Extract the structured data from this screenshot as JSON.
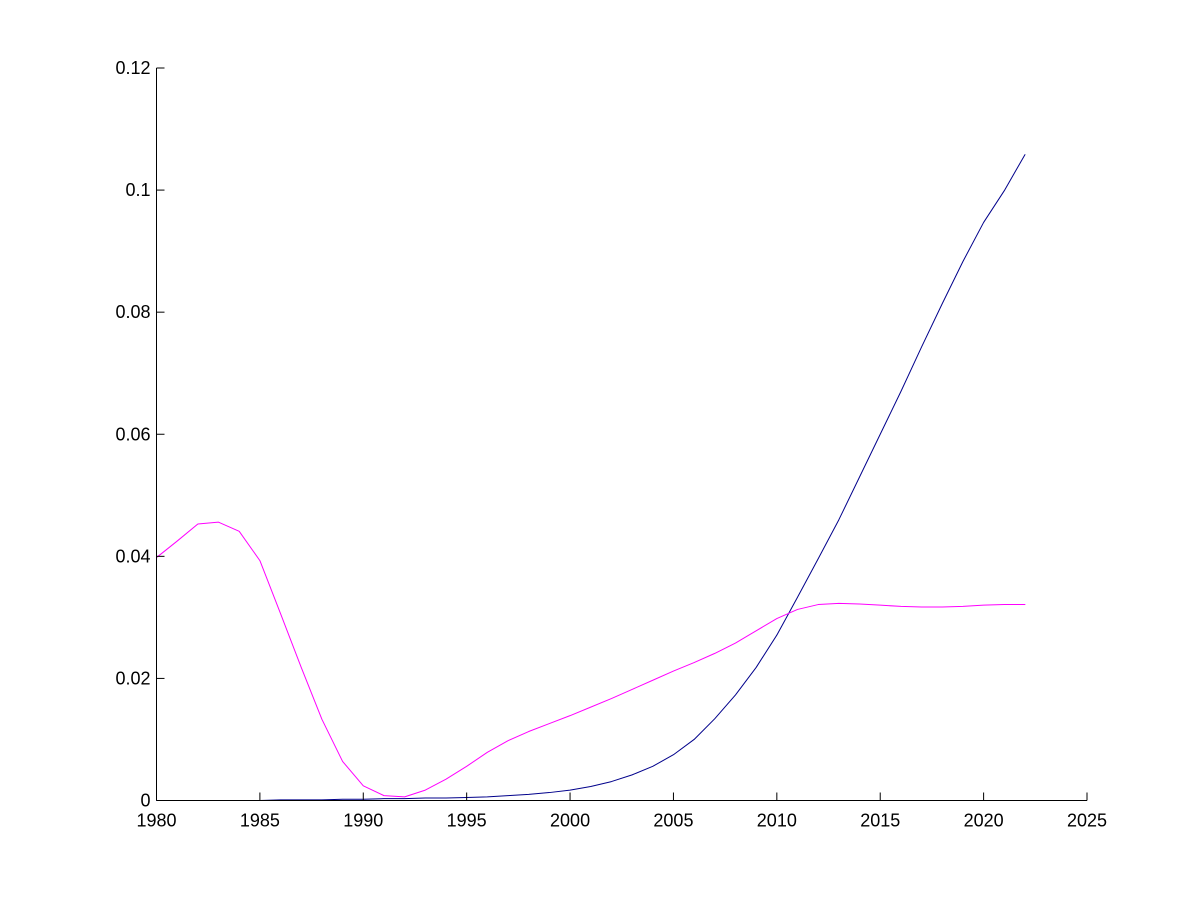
{
  "chart_data": {
    "type": "line",
    "title": "",
    "xlabel": "",
    "ylabel": "",
    "xlim": [
      1980,
      2025
    ],
    "ylim": [
      0,
      0.12
    ],
    "x_ticks": [
      "1980",
      "1985",
      "1990",
      "1995",
      "2000",
      "2005",
      "2010",
      "2015",
      "2020",
      "2025"
    ],
    "y_ticks": [
      "0",
      "0.02",
      "0.04",
      "0.06",
      "0.08",
      "0.1",
      "0.12"
    ],
    "grid": false,
    "legend": "none",
    "series": [
      {
        "color": "#00008b",
        "x": [
          1980,
          1981,
          1982,
          1983,
          1984,
          1985,
          1986,
          1987,
          1988,
          1989,
          1990,
          1991,
          1992,
          1993,
          1994,
          1995,
          1996,
          1997,
          1998,
          1999,
          2000,
          2001,
          2002,
          2003,
          2004,
          2005,
          2006,
          2007,
          2008,
          2009,
          2010,
          2011,
          2012,
          2013,
          2014,
          2015,
          2016,
          2017,
          2018,
          2019,
          2020,
          2021,
          2022
        ],
        "y": [
          0,
          0,
          0,
          0,
          0,
          0,
          0.0001,
          0.0001,
          0.0001,
          0.0002,
          0.0002,
          0.0003,
          0.0003,
          0.0004,
          0.0004,
          0.0005,
          0.0006,
          0.0008,
          0.001,
          0.0013,
          0.0017,
          0.0023,
          0.0031,
          0.0042,
          0.0056,
          0.0075,
          0.01,
          0.0134,
          0.0173,
          0.0218,
          0.0271,
          0.0333,
          0.0396,
          0.046,
          0.053,
          0.06,
          0.067,
          0.0743,
          0.0814,
          0.0883,
          0.0947,
          0.0999,
          0.1058
        ]
      },
      {
        "color": "#ff00ff",
        "x": [
          1980,
          1981,
          1982,
          1983,
          1984,
          1985,
          1986,
          1987,
          1988,
          1989,
          1990,
          1991,
          1992,
          1993,
          1994,
          1995,
          1996,
          1997,
          1998,
          1999,
          2000,
          2001,
          2002,
          2003,
          2004,
          2005,
          2006,
          2007,
          2008,
          2009,
          2010,
          2011,
          2012,
          2013,
          2014,
          2015,
          2016,
          2017,
          2018,
          2019,
          2020,
          2021,
          2022
        ],
        "y": [
          0.0398,
          0.0425,
          0.0453,
          0.0456,
          0.0441,
          0.0393,
          0.0306,
          0.0218,
          0.0133,
          0.0064,
          0.0024,
          0.0008,
          0.0006,
          0.0017,
          0.0035,
          0.0056,
          0.0079,
          0.0098,
          0.0113,
          0.0126,
          0.0139,
          0.0153,
          0.0167,
          0.0182,
          0.0197,
          0.0212,
          0.0226,
          0.0241,
          0.0258,
          0.0278,
          0.0298,
          0.0313,
          0.0321,
          0.0323,
          0.0322,
          0.032,
          0.0318,
          0.0317,
          0.0317,
          0.0318,
          0.032,
          0.0321,
          0.0321
        ]
      }
    ]
  }
}
